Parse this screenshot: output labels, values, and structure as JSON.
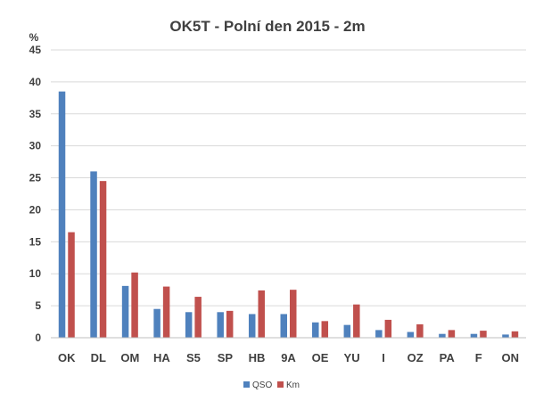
{
  "chart_data": {
    "type": "bar",
    "title": "OK5T - Polní den 2015 - 2m",
    "ylabel": "%",
    "xlabel": "",
    "ylim": [
      0,
      45
    ],
    "yticks": [
      0,
      5,
      10,
      15,
      20,
      25,
      30,
      35,
      40,
      45
    ],
    "grid": true,
    "legend_position": "bottom",
    "categories": [
      "OK",
      "DL",
      "OM",
      "HA",
      "S5",
      "SP",
      "HB",
      "9A",
      "OE",
      "YU",
      "I",
      "OZ",
      "PA",
      "F",
      "ON"
    ],
    "series": [
      {
        "name": "QSO",
        "color": "#4f81bd",
        "values": [
          38.5,
          26.0,
          8.1,
          4.5,
          4.0,
          4.0,
          3.7,
          3.7,
          2.4,
          2.0,
          1.2,
          0.9,
          0.6,
          0.6,
          0.5
        ]
      },
      {
        "name": "Km",
        "color": "#c0504d",
        "values": [
          16.5,
          24.5,
          10.2,
          8.0,
          6.4,
          4.2,
          7.4,
          7.5,
          2.6,
          5.2,
          2.8,
          2.1,
          1.2,
          1.1,
          1.0
        ]
      }
    ]
  }
}
